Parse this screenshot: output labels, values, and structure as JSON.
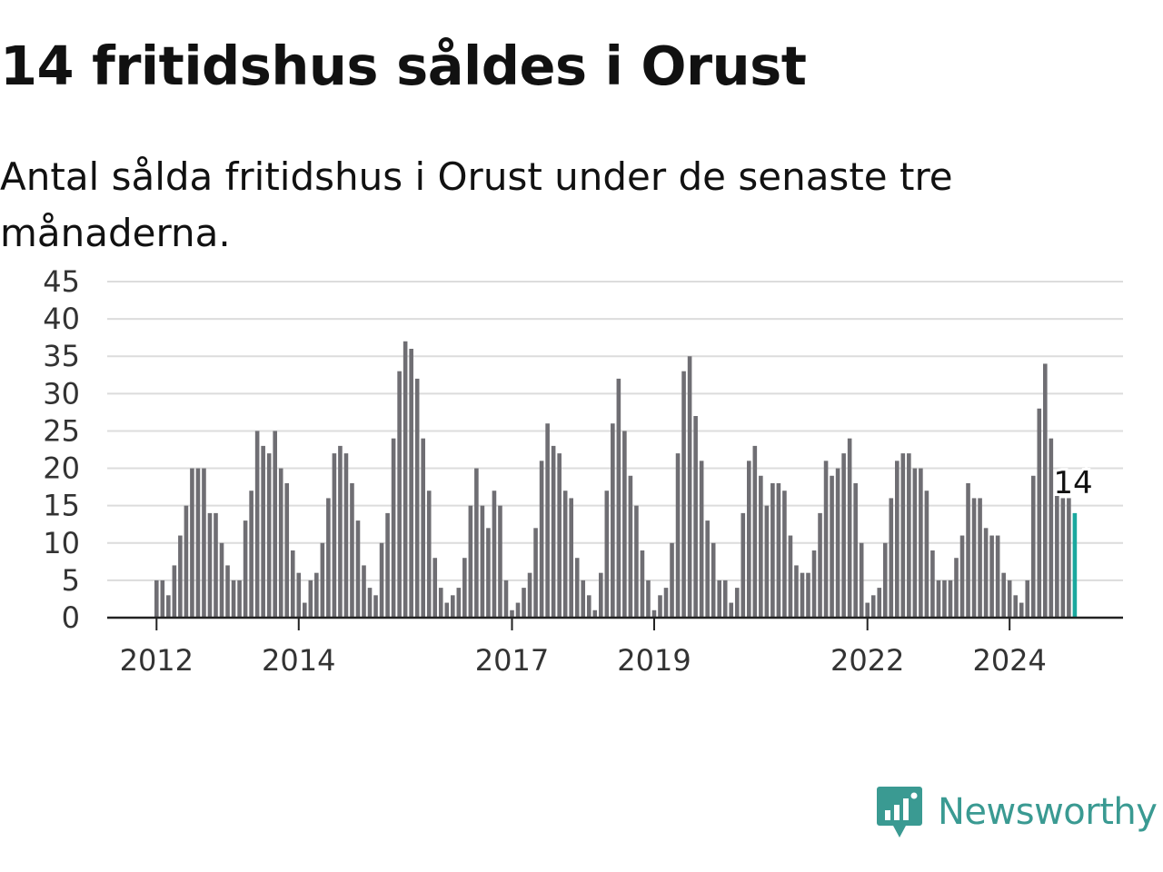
{
  "title": "14 fritidshus såldes i Orust",
  "subtitle": "Antal sålda fritidshus i Orust under de senaste tre månaderna.",
  "brand": {
    "name": "Newsworthy",
    "icon": "newsworthy-logo-icon",
    "color": "#3a9a92"
  },
  "colors": {
    "bar": "#6f6e73",
    "highlight": "#1aa89e",
    "grid": "#dcdcdc",
    "axis": "#222222"
  },
  "chart_data": {
    "type": "bar",
    "ylim": [
      0,
      45
    ],
    "yticks": [
      0,
      5,
      10,
      15,
      20,
      25,
      30,
      35,
      40,
      45
    ],
    "grid": true,
    "x_start": "2012-01",
    "x_interval": "month",
    "xticks": [
      "2012",
      "2014",
      "2017",
      "2019",
      "2022",
      "2024"
    ],
    "values": [
      5,
      5,
      3,
      7,
      11,
      15,
      20,
      20,
      20,
      14,
      14,
      10,
      7,
      5,
      5,
      13,
      17,
      25,
      23,
      22,
      25,
      20,
      18,
      9,
      6,
      2,
      5,
      6,
      10,
      16,
      22,
      23,
      22,
      18,
      13,
      7,
      4,
      3,
      10,
      14,
      24,
      33,
      37,
      36,
      32,
      24,
      17,
      8,
      4,
      2,
      3,
      4,
      8,
      15,
      20,
      15,
      12,
      17,
      15,
      5,
      1,
      2,
      4,
      6,
      12,
      21,
      26,
      23,
      22,
      17,
      16,
      8,
      5,
      3,
      1,
      6,
      17,
      26,
      32,
      25,
      19,
      15,
      9,
      5,
      1,
      3,
      4,
      10,
      22,
      33,
      35,
      27,
      21,
      13,
      10,
      5,
      5,
      2,
      4,
      14,
      21,
      23,
      19,
      15,
      18,
      18,
      17,
      11,
      7,
      6,
      6,
      9,
      14,
      21,
      19,
      20,
      22,
      24,
      18,
      10,
      2,
      3,
      4,
      10,
      16,
      21,
      22,
      22,
      20,
      20,
      17,
      9,
      5,
      5,
      5,
      8,
      11,
      18,
      16,
      16,
      12,
      11,
      11,
      6,
      5,
      3,
      2,
      5,
      19,
      28,
      34,
      24,
      17,
      16,
      16,
      14
    ],
    "highlight_label": "14"
  }
}
